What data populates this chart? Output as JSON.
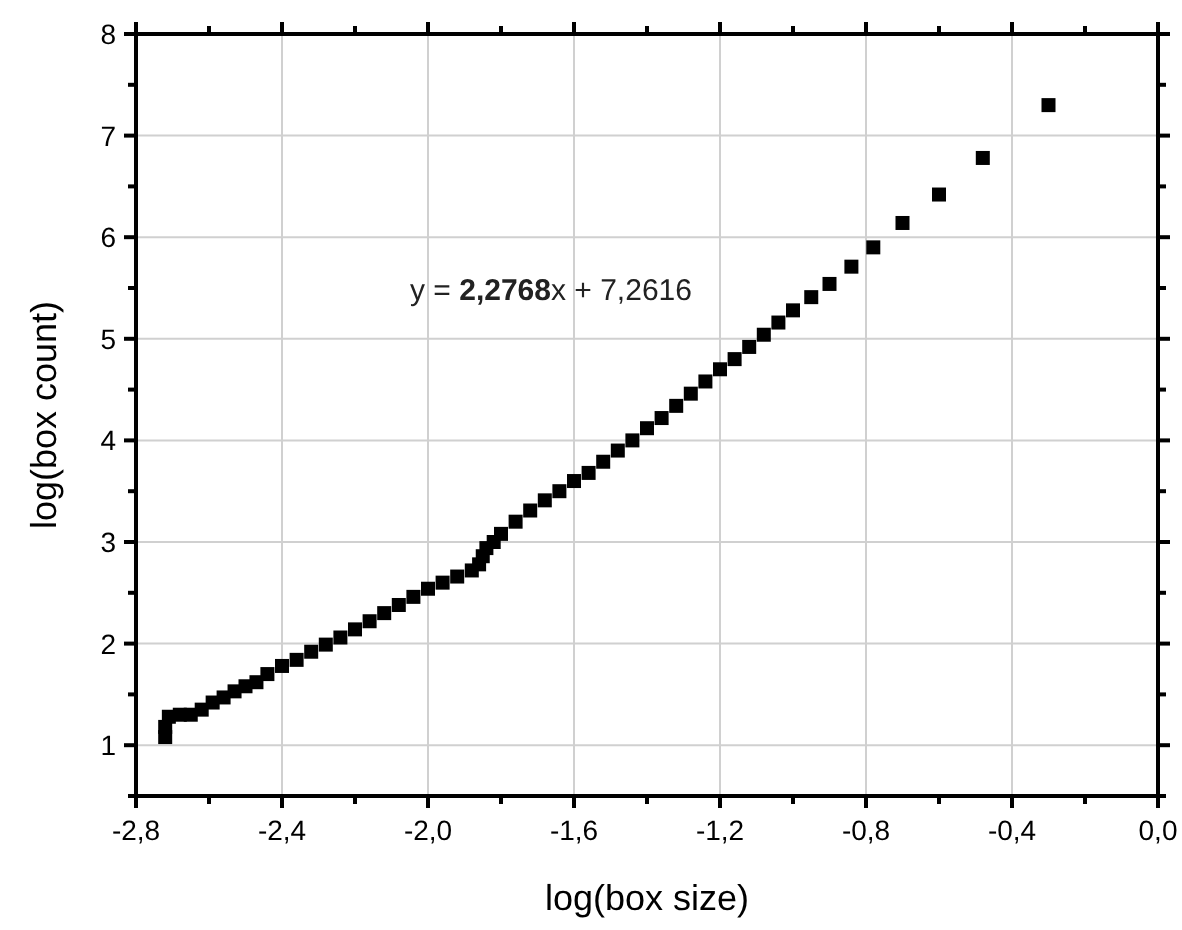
{
  "chart_data": {
    "type": "scatter",
    "xlabel": "log(box size)",
    "ylabel": "log(box count)",
    "annotations": [
      "y = 2,2768x + 7,2616"
    ],
    "xlim": [
      -2.8,
      0.0
    ],
    "ylim": [
      0.5,
      8
    ],
    "xticks": [
      {
        "value": -2.8,
        "label": "-2,8"
      },
      {
        "value": -2.4,
        "label": "-2,4"
      },
      {
        "value": -2.0,
        "label": "-2,0"
      },
      {
        "value": -1.6,
        "label": "-1,6"
      },
      {
        "value": -1.2,
        "label": "-1,2"
      },
      {
        "value": -0.8,
        "label": "-0,8"
      },
      {
        "value": -0.4,
        "label": "-0,4"
      },
      {
        "value": 0.0,
        "label": "0,0"
      }
    ],
    "yticks": [
      1,
      2,
      3,
      4,
      5,
      6,
      7,
      8
    ],
    "grid": true,
    "marker": "square",
    "series": [
      {
        "color": "#000000",
        "x": [
          -2.72,
          -2.72,
          -2.71,
          -2.68,
          -2.65,
          -2.62,
          -2.59,
          -2.56,
          -2.53,
          -2.5,
          -2.47,
          -2.44,
          -2.4,
          -2.36,
          -2.32,
          -2.28,
          -2.24,
          -2.2,
          -2.16,
          -2.12,
          -2.08,
          -2.04,
          -2.0,
          -1.96,
          -1.92,
          -1.88,
          -1.86,
          -1.85,
          -1.84,
          -1.82,
          -1.8,
          -1.76,
          -1.72,
          -1.68,
          -1.64,
          -1.6,
          -1.56,
          -1.52,
          -1.48,
          -1.44,
          -1.4,
          -1.36,
          -1.32,
          -1.28,
          -1.24,
          -1.2,
          -1.16,
          -1.12,
          -1.08,
          -1.04,
          -1.0,
          -0.95,
          -0.9,
          -0.84,
          -0.78,
          -0.7,
          -0.6,
          -0.48,
          -0.3
        ],
        "values": [
          1.08,
          1.18,
          1.28,
          1.3,
          1.3,
          1.35,
          1.42,
          1.47,
          1.53,
          1.58,
          1.62,
          1.7,
          1.78,
          1.84,
          1.92,
          1.99,
          2.06,
          2.14,
          2.22,
          2.3,
          2.38,
          2.46,
          2.54,
          2.6,
          2.66,
          2.72,
          2.78,
          2.86,
          2.94,
          3.0,
          3.08,
          3.2,
          3.31,
          3.41,
          3.5,
          3.6,
          3.68,
          3.79,
          3.9,
          4.0,
          4.12,
          4.22,
          4.34,
          4.46,
          4.58,
          4.7,
          4.8,
          4.92,
          5.04,
          5.16,
          5.28,
          5.41,
          5.54,
          5.71,
          5.9,
          6.14,
          6.42,
          6.78,
          7.3
        ]
      }
    ]
  }
}
